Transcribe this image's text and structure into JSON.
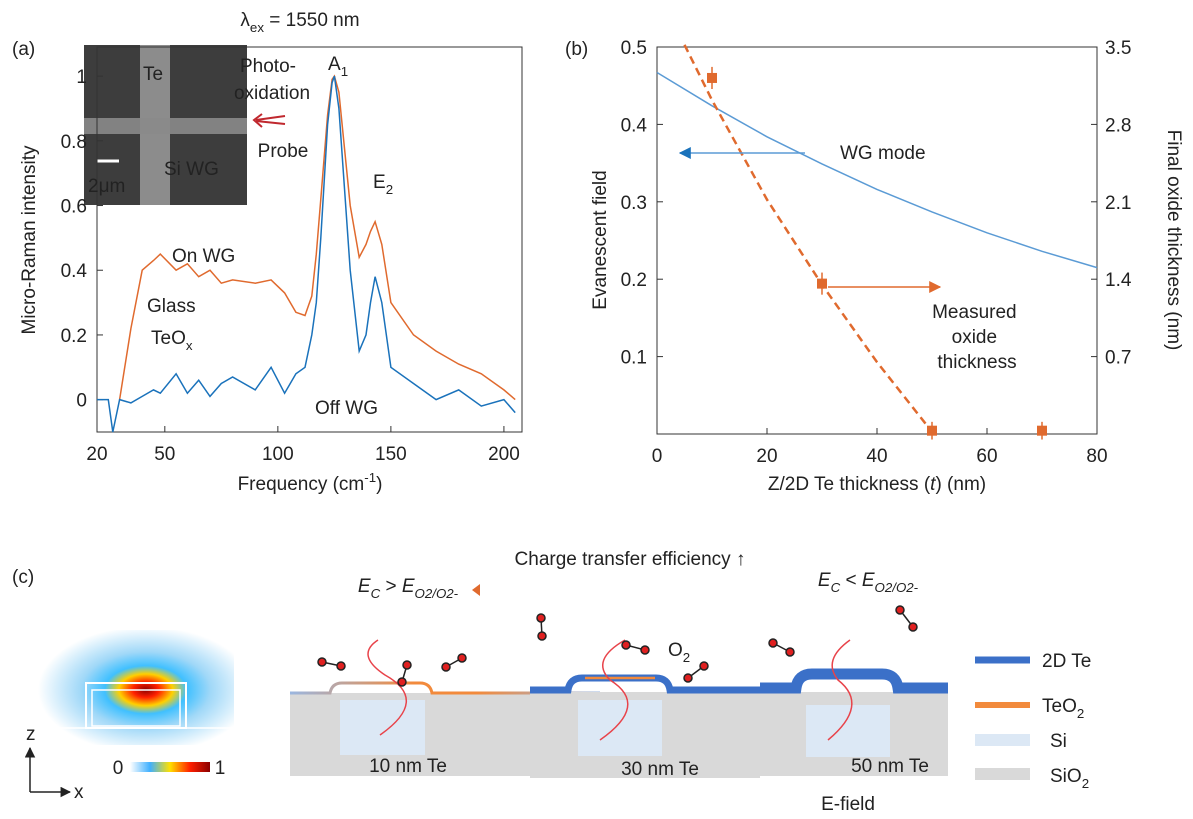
{
  "chart_data": [
    {
      "type": "line",
      "panel_label": "(a)",
      "excitation": [
        {
          "t": "λ"
        },
        {
          "t": "ex",
          "sub": true
        },
        {
          "t": " = 1550 nm"
        }
      ],
      "xlabel": [
        {
          "t": "Frequency (cm"
        },
        {
          "t": "-1",
          "sup": true
        },
        {
          "t": ")"
        }
      ],
      "ylabel": "Micro-Raman intensity",
      "xlim": [
        20,
        208
      ],
      "ylim": [
        -0.1,
        1.09
      ],
      "xticks": [
        20,
        50,
        100,
        150,
        200
      ],
      "yticks": [
        0,
        0.2,
        0.4,
        0.6,
        0.8,
        1
      ],
      "x": [
        20,
        25,
        27,
        30,
        35,
        40,
        45,
        48,
        55,
        60,
        65,
        70,
        75,
        80,
        90,
        97,
        103,
        108,
        112,
        115,
        117,
        119,
        122,
        124,
        125,
        127,
        132,
        136,
        139,
        141,
        143,
        146,
        150,
        160,
        170,
        180,
        190,
        200,
        205
      ],
      "series": [
        {
          "name": "On WG",
          "color": "#e06a2e",
          "values": [
            null,
            null,
            null,
            0.0,
            0.22,
            0.4,
            0.43,
            0.45,
            0.4,
            0.42,
            0.38,
            0.4,
            0.36,
            0.37,
            0.36,
            0.37,
            0.33,
            0.27,
            0.26,
            0.32,
            0.45,
            0.62,
            0.88,
            0.99,
            1.0,
            0.95,
            0.6,
            0.44,
            0.48,
            0.52,
            0.55,
            0.48,
            0.3,
            0.2,
            0.15,
            0.11,
            0.08,
            0.03,
            0.0
          ]
        },
        {
          "name": "Off WG",
          "color": "#1a72bb",
          "values": [
            0,
            0,
            -0.1,
            0.0,
            -0.01,
            0.01,
            0.03,
            0.02,
            0.08,
            0.02,
            0.06,
            0.01,
            0.05,
            0.07,
            0.03,
            0.1,
            0.02,
            0.08,
            0.1,
            0.2,
            0.3,
            0.5,
            0.85,
            0.98,
            1.0,
            0.9,
            0.4,
            0.15,
            0.2,
            0.3,
            0.38,
            0.3,
            0.1,
            0.05,
            0.0,
            0.03,
            -0.02,
            0.0,
            -0.04
          ]
        }
      ],
      "peak_labels": [
        [
          {
            "t": "A"
          },
          {
            "t": "1",
            "sub": true
          }
        ],
        [
          {
            "t": "E"
          },
          {
            "t": "2",
            "sub": true
          }
        ]
      ],
      "phase_label": [
        "Glass",
        [
          {
            "t": "TeO"
          },
          {
            "t": "x",
            "sub": true
          }
        ]
      ],
      "inset": {
        "labels": [
          "Te",
          "Si WG"
        ],
        "scale": "2μm",
        "pump": [
          "Photo-",
          "oxidation"
        ],
        "probe": "Probe"
      }
    },
    {
      "type": "line",
      "panel_label": "(b)",
      "xlabel": [
        {
          "t": "Z/2D Te thickness ("
        },
        {
          "t": "t",
          "i": true
        },
        {
          "t": ") (nm)"
        }
      ],
      "ylabel": "Evanescent field",
      "y2label": "Final oxide thickness (nm)",
      "xlim": [
        0,
        80
      ],
      "ylim": [
        0,
        0.5
      ],
      "y2lim": [
        0,
        3.5
      ],
      "xticks": [
        0,
        20,
        40,
        60,
        80
      ],
      "yticks": [
        0.1,
        0.2,
        0.3,
        0.4,
        0.5
      ],
      "y2ticks": [
        0.7,
        1.4,
        2.1,
        2.8,
        3.5
      ],
      "series": [
        {
          "name": "WG mode",
          "color": "#5b9bd5",
          "style": "solid",
          "x": [
            0,
            10,
            20,
            30,
            40,
            50,
            60,
            70,
            80
          ],
          "values": [
            0.467,
            0.424,
            0.384,
            0.349,
            0.316,
            0.287,
            0.26,
            0.236,
            0.215
          ]
        },
        {
          "color": "#e06a2e",
          "style": "dashed",
          "axis": "y2",
          "x": [
            5,
            10,
            20,
            30,
            40,
            50
          ],
          "values": [
            3.52,
            3.02,
            2.12,
            1.35,
            0.65,
            0.02
          ]
        },
        {
          "name": "Measured oxide thickness",
          "color": "#e06a2e",
          "style": "markers",
          "axis": "y2",
          "x": [
            10,
            30,
            50,
            70
          ],
          "values": [
            3.22,
            1.36,
            0.03,
            0.03
          ],
          "errors": [
            0.1,
            0.1,
            0.08,
            0.08
          ]
        }
      ]
    }
  ],
  "diagram": {
    "panel_label": "(c)",
    "trend": "Charge transfer efficiency ↑",
    "left_condition": [
      {
        "t": "E",
        "i": true
      },
      {
        "t": "C",
        "sub": true,
        "i": true
      },
      {
        "t": " > "
      },
      {
        "t": "E",
        "i": true
      },
      {
        "t": "O2/O2-",
        "sub": true,
        "i": true
      }
    ],
    "right_condition": [
      {
        "t": "E",
        "i": true
      },
      {
        "t": "C",
        "sub": true,
        "i": true
      },
      {
        "t": " < "
      },
      {
        "t": "E",
        "i": true
      },
      {
        "t": "O2/O2-",
        "sub": true,
        "i": true
      }
    ],
    "molecule": [
      {
        "t": "O"
      },
      {
        "t": "2",
        "sub": true
      }
    ],
    "devices": [
      "10 nm Te",
      "30 nm Te",
      "50 nm Te"
    ],
    "field_label": "E-field",
    "colorbar": [
      0,
      1
    ],
    "axes": [
      "z",
      "x"
    ],
    "legend": [
      "2D Te",
      [
        {
          "t": "TeO"
        },
        {
          "t": "2",
          "sub": true
        }
      ],
      "Si",
      [
        {
          "t": "SiO"
        },
        {
          "t": "2",
          "sub": true
        }
      ]
    ]
  }
}
